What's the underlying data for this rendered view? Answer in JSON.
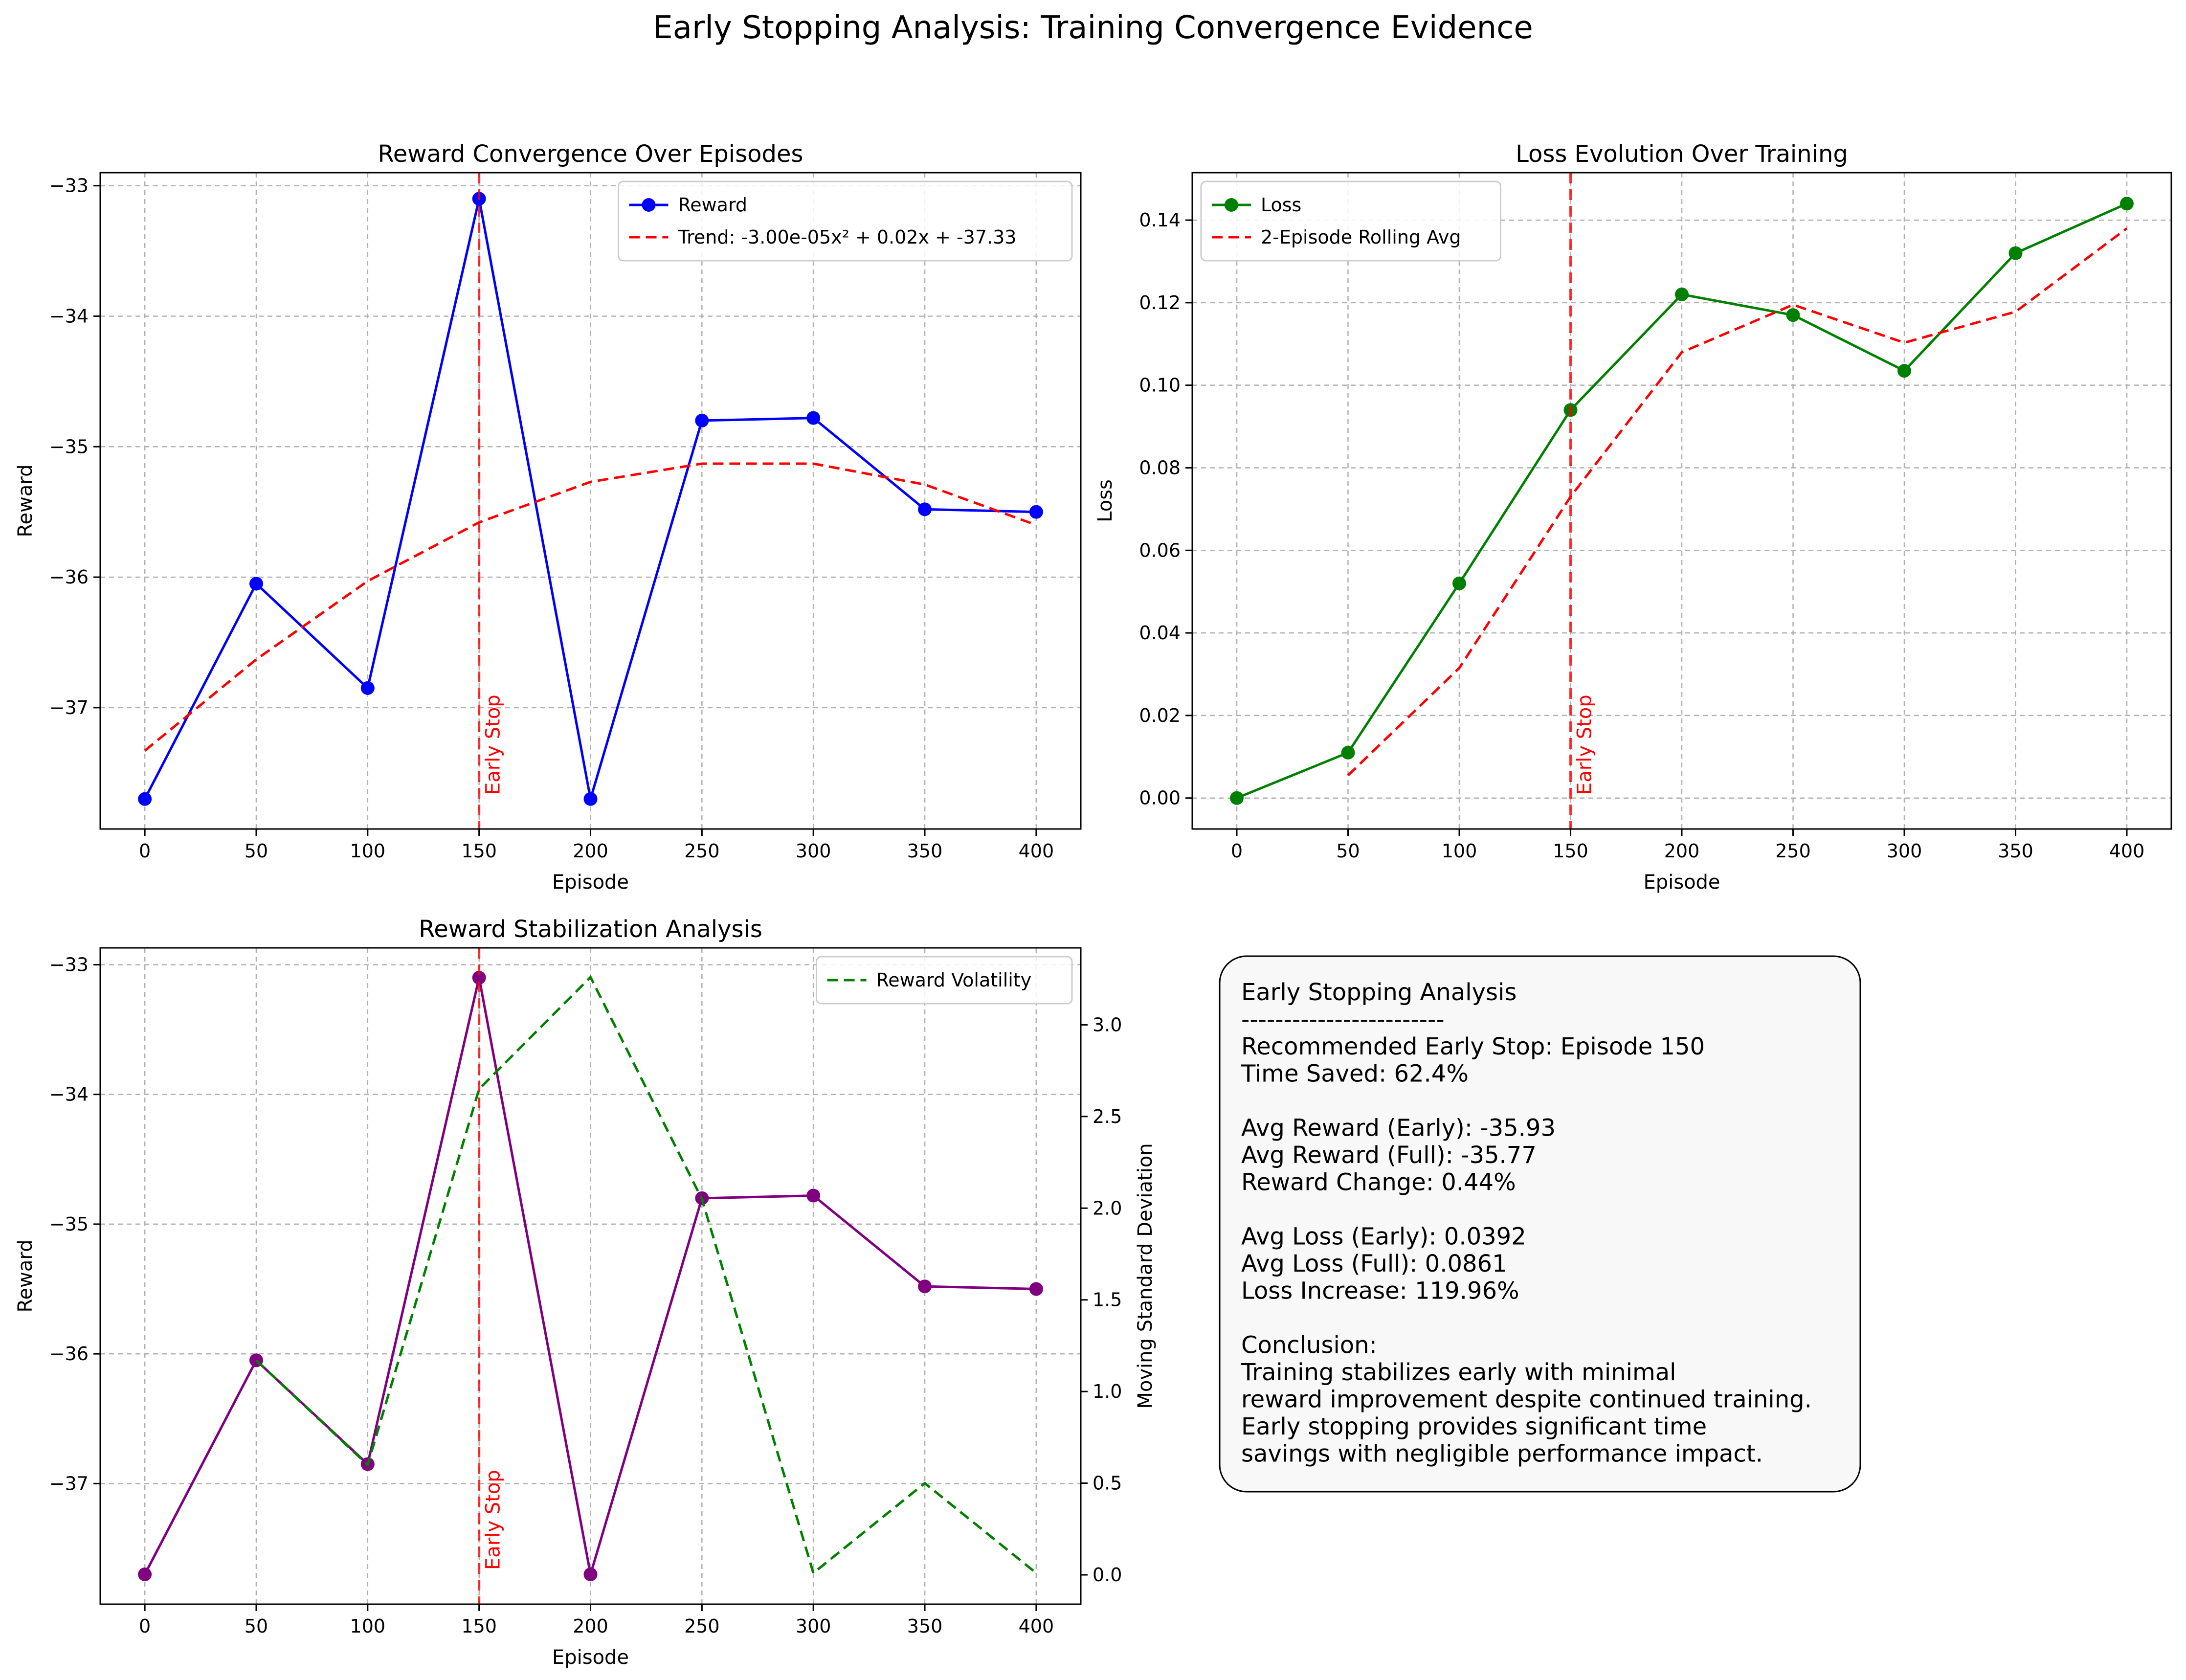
{
  "figure": {
    "suptitle": "Early Stopping Analysis: Training Convergence Evidence"
  },
  "chart_data": [
    {
      "id": "reward",
      "type": "line",
      "title": "Reward Convergence Over Episodes",
      "xlabel": "Episode",
      "ylabel": "Reward",
      "x": [
        0,
        50,
        100,
        150,
        200,
        250,
        300,
        350,
        400
      ],
      "xlim": [
        -20,
        420
      ],
      "ylim": [
        -37.93,
        -32.9
      ],
      "xticks": [
        "0",
        "50",
        "100",
        "150",
        "200",
        "250",
        "300",
        "350",
        "400"
      ],
      "yticks": [
        "−33",
        "−34",
        "−35",
        "−36",
        "−37"
      ],
      "ytick_values": [
        -33,
        -34,
        -35,
        -36,
        -37
      ],
      "grid": true,
      "legend_position": "upper right",
      "series": [
        {
          "name": "Reward",
          "color": "#0000ff",
          "style": "solid",
          "marker": "o",
          "values": [
            -37.7,
            -36.05,
            -36.85,
            -33.1,
            -37.7,
            -34.8,
            -34.78,
            -35.48,
            -35.5
          ]
        },
        {
          "name": "Trend: -3.00e-05x² + 0.02x + -37.33",
          "color": "#ff0000",
          "style": "dashed",
          "values": [
            -37.33,
            -36.63,
            -36.03,
            -35.58,
            -35.27,
            -35.13,
            -35.13,
            -35.29,
            -35.6
          ]
        }
      ],
      "vline": {
        "x": 150,
        "label": "Early Stop",
        "color": "#ff0000"
      }
    },
    {
      "id": "loss",
      "type": "line",
      "title": "Loss Evolution Over Training",
      "xlabel": "Episode",
      "ylabel": "Loss",
      "x": [
        0,
        50,
        100,
        150,
        200,
        250,
        300,
        350,
        400
      ],
      "xlim": [
        -20,
        420
      ],
      "ylim": [
        -0.0075,
        0.1515
      ],
      "xticks": [
        "0",
        "50",
        "100",
        "150",
        "200",
        "250",
        "300",
        "350",
        "400"
      ],
      "yticks": [
        "0.00",
        "0.02",
        "0.04",
        "0.06",
        "0.08",
        "0.10",
        "0.12",
        "0.14"
      ],
      "ytick_values": [
        0,
        0.02,
        0.04,
        0.06,
        0.08,
        0.1,
        0.12,
        0.14
      ],
      "grid": true,
      "legend_position": "upper left",
      "series": [
        {
          "name": "Loss",
          "color": "#008000",
          "style": "solid",
          "marker": "o",
          "values": [
            0.0,
            0.011,
            0.052,
            0.094,
            0.122,
            0.117,
            0.1035,
            0.132,
            0.144
          ]
        },
        {
          "name": "2-Episode Rolling Avg",
          "color": "#ff0000",
          "style": "dashed",
          "values": [
            null,
            0.0055,
            0.0315,
            0.073,
            0.108,
            0.1195,
            0.1103,
            0.1178,
            0.138
          ]
        }
      ],
      "vline": {
        "x": 150,
        "label": "Early Stop",
        "color": "#ff0000"
      }
    },
    {
      "id": "stability",
      "type": "line",
      "title": "Reward Stabilization Analysis",
      "xlabel": "Episode",
      "ylabel": "Reward",
      "y2label": "Moving Standard Deviation",
      "x": [
        0,
        50,
        100,
        150,
        200,
        250,
        300,
        350,
        400
      ],
      "xlim": [
        -20,
        420
      ],
      "ylim": [
        -37.93,
        -32.87
      ],
      "y2lim": [
        -0.16,
        3.42
      ],
      "xticks": [
        "0",
        "50",
        "100",
        "150",
        "200",
        "250",
        "300",
        "350",
        "400"
      ],
      "yticks": [
        "−33",
        "−34",
        "−35",
        "−36",
        "−37"
      ],
      "ytick_values": [
        -33,
        -34,
        -35,
        -36,
        -37
      ],
      "y2ticks": [
        "0.0",
        "0.5",
        "1.0",
        "1.5",
        "2.0",
        "2.5",
        "3.0"
      ],
      "y2tick_values": [
        0,
        0.5,
        1.0,
        1.5,
        2.0,
        2.5,
        3.0
      ],
      "grid": true,
      "legend_position": "upper right",
      "series": [
        {
          "name": "",
          "color": "#800080",
          "style": "solid",
          "marker": "o",
          "axis": "left",
          "values": [
            -37.7,
            -36.05,
            -36.85,
            -33.1,
            -37.7,
            -34.8,
            -34.78,
            -35.48,
            -35.5
          ]
        },
        {
          "name": "Reward Volatility",
          "color": "#008000",
          "style": "dashed",
          "axis": "right",
          "values": [
            null,
            1.17,
            0.6,
            2.65,
            3.26,
            2.05,
            0.01,
            0.5,
            0.01
          ]
        }
      ],
      "vline": {
        "x": 150,
        "label": "Early Stop",
        "color": "#ff0000"
      }
    }
  ],
  "summary": {
    "lines": [
      "Early Stopping Analysis",
      "------------------------",
      "Recommended Early Stop: Episode 150",
      "Time Saved: 62.4%",
      "",
      "Avg Reward (Early): -35.93",
      "Avg Reward (Full): -35.77",
      "Reward Change: 0.44%",
      "",
      "Avg Loss (Early): 0.0392",
      "Avg Loss (Full): 0.0861",
      "Loss Increase: 119.96%",
      "",
      "Conclusion:",
      "Training stabilizes early with minimal",
      "reward improvement despite continued training.",
      "Early stopping provides significant time",
      "savings with negligible performance impact."
    ]
  }
}
